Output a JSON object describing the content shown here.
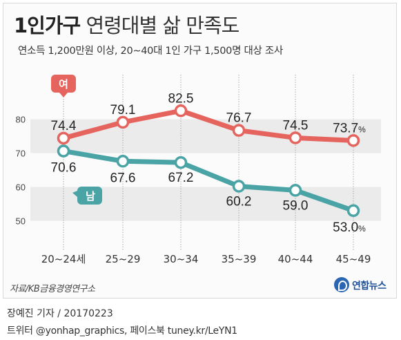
{
  "title": {
    "main": "1인가구",
    "rest": "연령대별 삶 만족도"
  },
  "subtitle": "연소득 1,200만원 이상, 20~40대 1인 가구 1,500명 대상 조사",
  "source": "자료/KB금융경영연구소",
  "logo": "연합뉴스",
  "byline": "장예진 기자 / 20170223",
  "credit": "트위터 @yonhap_graphics, 페이스북 tuney.kr/LeYN1",
  "colors": {
    "female": "#e5645e",
    "male": "#4aa3a5",
    "band": "#ebebeb"
  },
  "chart_data": {
    "type": "line",
    "categories": [
      "20~24세",
      "25~29",
      "30~34",
      "35~39",
      "40~44",
      "45~49"
    ],
    "yticks": [
      50,
      60,
      70,
      80
    ],
    "ylim": [
      45,
      85
    ],
    "series": [
      {
        "name": "여",
        "values": [
          74.4,
          79.1,
          82.5,
          76.7,
          74.5,
          73.7
        ],
        "labels": [
          "74.4",
          "79.1",
          "82.5",
          "76.7",
          "74.5",
          "73.7"
        ],
        "unit": "%"
      },
      {
        "name": "남",
        "values": [
          70.6,
          67.6,
          67.2,
          60.2,
          59.0,
          53.0
        ],
        "labels": [
          "70.6",
          "67.6",
          "67.2",
          "60.2",
          "59.0",
          "53.0"
        ],
        "unit": "%"
      }
    ]
  }
}
